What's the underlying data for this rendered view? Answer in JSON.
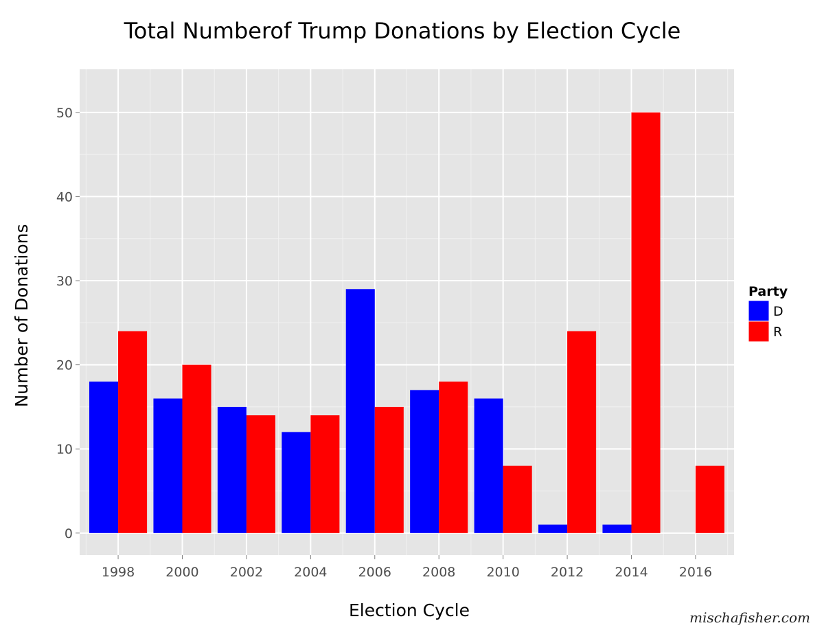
{
  "chart_data": {
    "type": "bar",
    "title": "Total Numberof Trump Donations by Election Cycle",
    "xlabel": "Election Cycle",
    "ylabel": "Number of Donations",
    "categories": [
      "1998",
      "2000",
      "2002",
      "2004",
      "2006",
      "2008",
      "2010",
      "2012",
      "2014",
      "2016"
    ],
    "series": [
      {
        "name": "D",
        "color": "#0000ff",
        "values": [
          18,
          16,
          15,
          12,
          29,
          17,
          16,
          1,
          1,
          null
        ]
      },
      {
        "name": "R",
        "color": "#ff0000",
        "values": [
          24,
          20,
          14,
          14,
          15,
          18,
          8,
          24,
          50,
          8
        ]
      }
    ],
    "ylim": [
      0,
      52.5
    ],
    "yticks": [
      0,
      10,
      20,
      30,
      40,
      50
    ],
    "grid": true,
    "legend": {
      "title": "Party",
      "position": "right"
    },
    "background_color": "#e5e5e5",
    "grid_color": "#ffffff"
  },
  "watermark": "mischafisher.com"
}
